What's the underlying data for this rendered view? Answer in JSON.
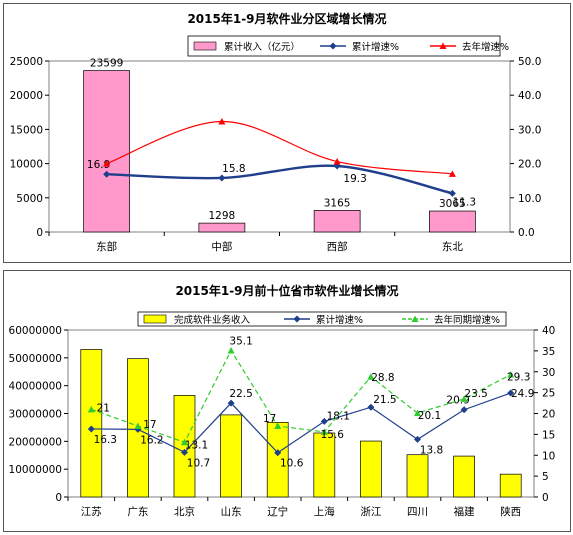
{
  "chart_data": [
    {
      "type": "bar",
      "title": "2015年1-9月软件业分区域增长情况",
      "categories": [
        "东部",
        "中部",
        "西部",
        "东北"
      ],
      "ylim": [
        0,
        25000
      ],
      "y2lim": [
        0,
        50
      ],
      "yticks": [
        "0",
        "5000",
        "10000",
        "15000",
        "20000",
        "25000"
      ],
      "y2ticks": [
        "0.0",
        "10.0",
        "20.0",
        "30.0",
        "40.0",
        "50.0"
      ],
      "series": [
        {
          "name": "累计收入（亿元）",
          "kind": "bar",
          "axis": "left",
          "color": "#ff99cc",
          "values": [
            23599,
            1298,
            3165,
            3065
          ],
          "labels": [
            "23599",
            "1298",
            "3165",
            "3065"
          ]
        },
        {
          "name": "累计增速%",
          "kind": "line",
          "axis": "right",
          "color": "#1f3e8c",
          "marker": "diamond",
          "values": [
            16.9,
            15.8,
            19.3,
            11.3
          ],
          "labels": [
            "16.9",
            "15.8",
            "19.3",
            "11.3"
          ]
        },
        {
          "name": "去年增速%",
          "kind": "line",
          "axis": "right",
          "color": "#ff0000",
          "marker": "triangle",
          "values": [
            20.0,
            32.3,
            20.6,
            17.0
          ],
          "labels": []
        }
      ],
      "legend": "top",
      "grid": false
    },
    {
      "type": "bar",
      "title": "2015年1-9月前十位省市软件业增长情况",
      "categories": [
        "江苏",
        "广东",
        "北京",
        "山东",
        "辽宁",
        "上海",
        "浙江",
        "四川",
        "福建",
        "陕西"
      ],
      "ylim": [
        0,
        60000000
      ],
      "y2lim": [
        0,
        40
      ],
      "yticks": [
        "0",
        "10000000",
        "20000000",
        "30000000",
        "40000000",
        "50000000",
        "60000000"
      ],
      "y2ticks": [
        "0",
        "5",
        "10",
        "15",
        "20",
        "25",
        "30",
        "35",
        "40"
      ],
      "series": [
        {
          "name": "完成软件业务收入",
          "kind": "bar",
          "axis": "left",
          "color": "#ffff00",
          "values": [
            53000000,
            49700000,
            36500000,
            29500000,
            26800000,
            23000000,
            20100000,
            15200000,
            14700000,
            8200000
          ],
          "labels": []
        },
        {
          "name": "累计增速%",
          "kind": "line",
          "axis": "right",
          "color": "#1f3e8c",
          "marker": "diamond",
          "values": [
            16.3,
            16.2,
            10.7,
            22.5,
            10.6,
            18.1,
            21.5,
            13.8,
            20.9,
            24.9
          ],
          "labels": [
            "16.3",
            "16.2",
            "10.7",
            "22.5",
            "10.6",
            "18.1",
            "21.5",
            "13.8",
            "20.9",
            "24.9"
          ]
        },
        {
          "name": "去年同期增速%",
          "kind": "line",
          "axis": "right",
          "color": "#2ecc2e",
          "marker": "triangle",
          "dashed": true,
          "values": [
            21,
            17,
            13.1,
            35.1,
            17,
            15.6,
            28.8,
            20.1,
            23.5,
            29.3
          ],
          "labels": [
            "21",
            "17",
            "13.1",
            "35.1",
            "17",
            "15.6",
            "28.8",
            "20.1",
            "23.5",
            "29.3"
          ]
        }
      ],
      "legend": "top",
      "grid": false
    }
  ]
}
